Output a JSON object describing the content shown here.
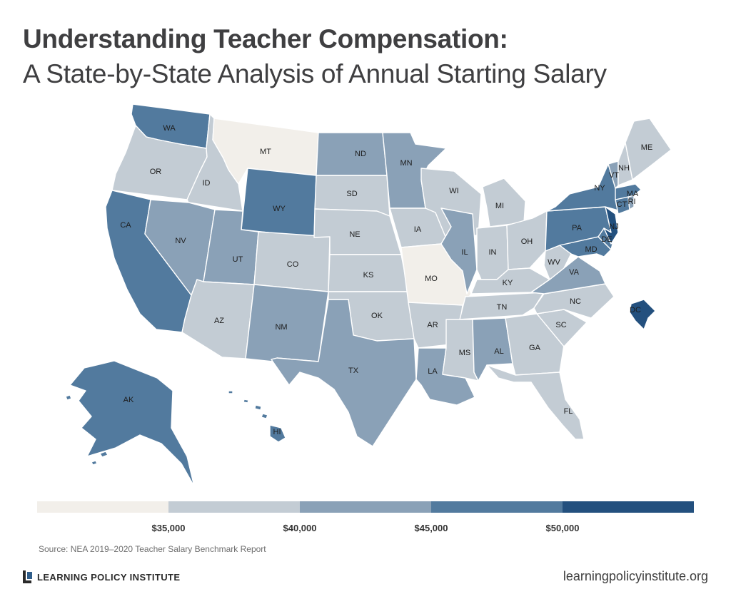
{
  "title": {
    "line1": "Understanding Teacher Compensation:",
    "line2": "A State-by-State Analysis of Annual Starting Salary"
  },
  "legend": {
    "bins": [
      {
        "color": "#f2efea",
        "range": "below $35,000"
      },
      {
        "color": "#c3ccd4",
        "range": "$35,000–$40,000"
      },
      {
        "color": "#8aa1b7",
        "range": "$40,000–$45,000"
      },
      {
        "color": "#527a9e",
        "range": "$45,000–$50,000"
      },
      {
        "color": "#23507e",
        "range": "$50,000 and above"
      }
    ],
    "ticks": [
      {
        "label": "$35,000",
        "pos": 0.2
      },
      {
        "label": "$40,000",
        "pos": 0.4
      },
      {
        "label": "$45,000",
        "pos": 0.6
      },
      {
        "label": "$50,000",
        "pos": 0.8
      }
    ]
  },
  "map_data": {
    "type": "choropleth",
    "measure": "Annual starting salary",
    "states": [
      {
        "code": "WA",
        "bin": 3
      },
      {
        "code": "OR",
        "bin": 1
      },
      {
        "code": "CA",
        "bin": 3
      },
      {
        "code": "ID",
        "bin": 1
      },
      {
        "code": "NV",
        "bin": 2
      },
      {
        "code": "MT",
        "bin": 0
      },
      {
        "code": "WY",
        "bin": 3
      },
      {
        "code": "UT",
        "bin": 2
      },
      {
        "code": "AZ",
        "bin": 1
      },
      {
        "code": "CO",
        "bin": 1
      },
      {
        "code": "NM",
        "bin": 2
      },
      {
        "code": "ND",
        "bin": 2
      },
      {
        "code": "SD",
        "bin": 1
      },
      {
        "code": "NE",
        "bin": 1
      },
      {
        "code": "KS",
        "bin": 1
      },
      {
        "code": "OK",
        "bin": 1
      },
      {
        "code": "TX",
        "bin": 2
      },
      {
        "code": "MN",
        "bin": 2
      },
      {
        "code": "IA",
        "bin": 1
      },
      {
        "code": "MO",
        "bin": 0
      },
      {
        "code": "AR",
        "bin": 1
      },
      {
        "code": "LA",
        "bin": 2
      },
      {
        "code": "WI",
        "bin": 1
      },
      {
        "code": "IL",
        "bin": 2
      },
      {
        "code": "MI",
        "bin": 1
      },
      {
        "code": "IN",
        "bin": 1
      },
      {
        "code": "OH",
        "bin": 1
      },
      {
        "code": "KY",
        "bin": 1
      },
      {
        "code": "TN",
        "bin": 1
      },
      {
        "code": "MS",
        "bin": 1
      },
      {
        "code": "AL",
        "bin": 2
      },
      {
        "code": "GA",
        "bin": 1
      },
      {
        "code": "FL",
        "bin": 1
      },
      {
        "code": "SC",
        "bin": 1
      },
      {
        "code": "NC",
        "bin": 1
      },
      {
        "code": "VA",
        "bin": 2
      },
      {
        "code": "WV",
        "bin": 1
      },
      {
        "code": "MD",
        "bin": 3
      },
      {
        "code": "DE",
        "bin": 3
      },
      {
        "code": "PA",
        "bin": 3
      },
      {
        "code": "NJ",
        "bin": 4
      },
      {
        "code": "NY",
        "bin": 3
      },
      {
        "code": "CT",
        "bin": 3
      },
      {
        "code": "RI",
        "bin": 2
      },
      {
        "code": "MA",
        "bin": 3
      },
      {
        "code": "VT",
        "bin": 2
      },
      {
        "code": "NH",
        "bin": 1
      },
      {
        "code": "ME",
        "bin": 1
      },
      {
        "code": "AK",
        "bin": 3
      },
      {
        "code": "HI",
        "bin": 3
      },
      {
        "code": "DC",
        "bin": 4
      }
    ]
  },
  "source": "Source: NEA 2019–2020 Teacher Salary Benchmark Report",
  "footer": {
    "org_name": "LEARNING POLICY INSTITUTE",
    "url": "learningpolicyinstitute.org"
  }
}
